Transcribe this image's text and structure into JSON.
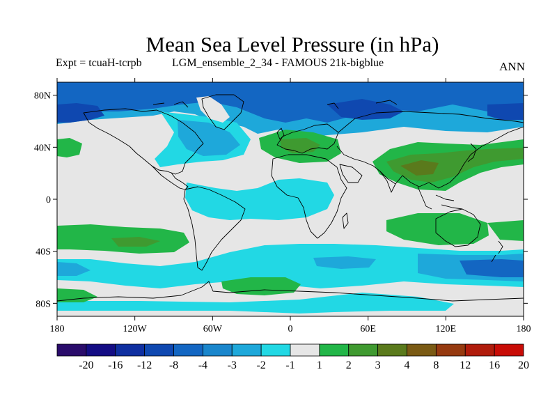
{
  "title": "Mean Sea Level Pressure (in hPa)",
  "subtitle_left": "Expt = tcuaH-tcrpb",
  "subtitle_mid": "LGM_ensemble_2_34 - FAMOUS 21k-bigblue",
  "subtitle_right": "ANN",
  "lat_ticks": [
    "80N",
    "40N",
    "0",
    "40S",
    "80S"
  ],
  "lon_ticks": [
    "180",
    "120W",
    "60W",
    "0",
    "60E",
    "120E",
    "180"
  ],
  "colorbar": {
    "labels": [
      "-20",
      "-16",
      "-12",
      "-8",
      "-4",
      "-3",
      "-2",
      "-1",
      "1",
      "2",
      "3",
      "4",
      "8",
      "12",
      "16",
      "20"
    ],
    "colors": [
      "#2a0c6b",
      "#140d84",
      "#0f2fa0",
      "#0f48b0",
      "#1366c2",
      "#1a86cc",
      "#1ea8da",
      "#22d8e4",
      "#e6e6e6",
      "#22b648",
      "#3f9a30",
      "#5a7a1c",
      "#7a5a14",
      "#963a10",
      "#b01c0c",
      "#c80c06"
    ]
  },
  "map": {
    "background": "#e6e6e6",
    "coast_color": "#000000"
  }
}
